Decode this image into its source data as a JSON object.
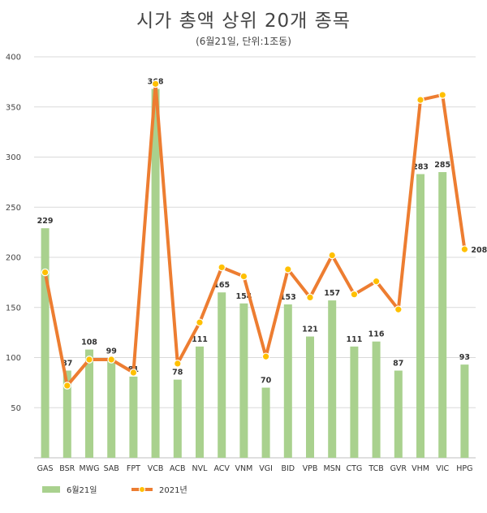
{
  "chart_data": {
    "type": "bar",
    "title": "시가 총액 상위 20개 종목",
    "subtitle": "(6월21일, 단위:1조동)",
    "categories": [
      "GAS",
      "BSR",
      "MWG",
      "SAB",
      "FPT",
      "VCB",
      "ACB",
      "NVL",
      "ACV",
      "VNM",
      "VGI",
      "BID",
      "VPB",
      "MSN",
      "CTG",
      "TCB",
      "GVR",
      "VHM",
      "VIC",
      "HPG"
    ],
    "series": [
      {
        "name": "6월21일",
        "kind": "bar",
        "color": "#a9d18e",
        "values": [
          229,
          87,
          108,
          99,
          81,
          368,
          78,
          111,
          165,
          154,
          70,
          153,
          121,
          157,
          111,
          116,
          87,
          283,
          285,
          93
        ],
        "labels": [
          "229",
          "87",
          "108",
          "99",
          "81",
          "368",
          "78",
          "111",
          "165",
          "154",
          "70",
          "153",
          "121",
          "157",
          "111",
          "116",
          "87",
          "283",
          "285",
          "93"
        ]
      },
      {
        "name": "2021년",
        "kind": "line",
        "color": "#ed7d31",
        "marker_color": "#ffc000",
        "values": [
          185,
          72,
          98,
          98,
          85,
          373,
          94,
          135,
          190,
          181,
          101,
          188,
          160,
          202,
          163,
          176,
          148,
          357,
          362,
          208
        ],
        "labels": [
          "",
          "",
          "",
          "",
          "",
          "",
          "",
          "",
          "",
          "",
          "",
          "",
          "",
          "",
          "",
          "",
          "",
          "",
          "",
          "208"
        ]
      }
    ],
    "y_ticks": [
      "50",
      "100",
      "150",
      "200",
      "250",
      "300",
      "350",
      "400"
    ],
    "ylim": [
      0,
      400
    ],
    "grid": true,
    "legend_position": "bottom-left"
  }
}
